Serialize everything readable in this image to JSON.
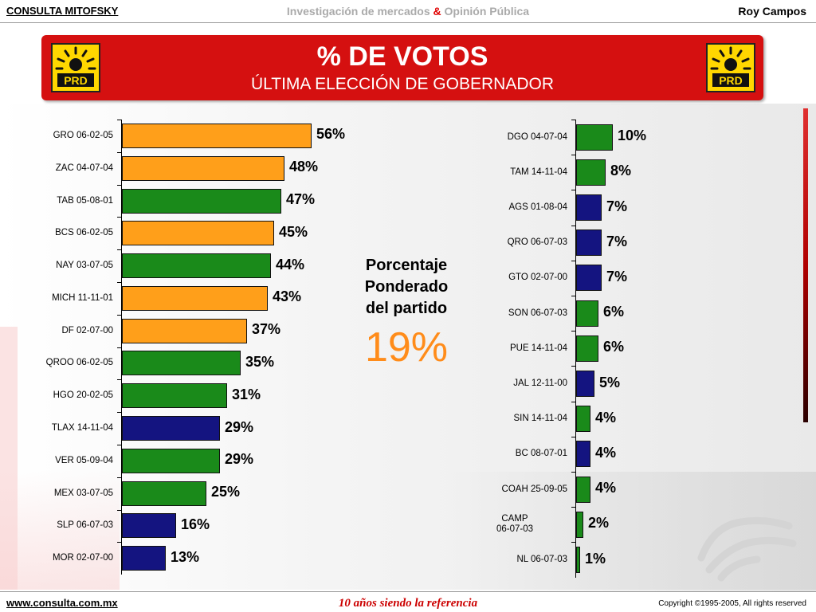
{
  "header": {
    "brand": "CONSULTA MITOFSKY",
    "tagline_left": "Investigación de mercados",
    "tagline_amp": "&",
    "tagline_right": "Opinión Pública",
    "author": "Roy Campos"
  },
  "banner": {
    "title": "% DE VOTOS",
    "subtitle": "ÚLTIMA ELECCIÓN DE GOBERNADOR",
    "logo_text": "PRD"
  },
  "colors": {
    "orange": "#ff9f1a",
    "green": "#1a8a1a",
    "blue": "#141480",
    "banner_red": "#d51010",
    "accent": "#ff8c1a"
  },
  "chart_data": [
    {
      "type": "bar",
      "orientation": "horizontal",
      "categories": [
        "GRO 06-02-05",
        "ZAC 04-07-04",
        "TAB 05-08-01",
        "BCS 06-02-05",
        "NAY 03-07-05",
        "MICH 11-11-01",
        "DF 02-07-00",
        "QROO 06-02-05",
        "HGO 20-02-05",
        "TLAX 14-11-04",
        "VER 05-09-04",
        "MEX 03-07-05",
        "SLP 06-07-03",
        "MOR 02-07-00"
      ],
      "values": [
        56,
        48,
        47,
        45,
        44,
        43,
        37,
        35,
        31,
        29,
        29,
        25,
        16,
        13
      ],
      "value_labels": [
        "56%",
        "48%",
        "47%",
        "45%",
        "44%",
        "43%",
        "37%",
        "35%",
        "31%",
        "29%",
        "29%",
        "25%",
        "16%",
        "13%"
      ],
      "bar_colors": [
        "orange",
        "orange",
        "green",
        "orange",
        "green",
        "orange",
        "orange",
        "green",
        "green",
        "blue",
        "green",
        "green",
        "blue",
        "blue"
      ],
      "xlim": [
        0,
        56
      ]
    },
    {
      "type": "bar",
      "orientation": "horizontal",
      "categories": [
        "DGO 04-07-04",
        "TAM 14-11-04",
        "AGS 01-08-04",
        "QRO 06-07-03",
        "GTO 02-07-00",
        "SON 06-07-03",
        "PUE 14-11-04",
        "JAL 12-11-00",
        "SIN 14-11-04",
        "BC 08-07-01",
        "COAH 25-09-05",
        "CAMP\n06-07-03",
        "NL 06-07-03"
      ],
      "values": [
        10,
        8,
        7,
        7,
        7,
        6,
        6,
        5,
        4,
        4,
        4,
        2,
        1
      ],
      "value_labels": [
        "10%",
        "8%",
        "7%",
        "7%",
        "7%",
        "6%",
        "6%",
        "5%",
        "4%",
        "4%",
        "4%",
        "2%",
        "1%"
      ],
      "bar_colors": [
        "green",
        "green",
        "blue",
        "blue",
        "blue",
        "green",
        "green",
        "blue",
        "green",
        "blue",
        "green",
        "green",
        "green"
      ],
      "xlim": [
        0,
        10
      ]
    }
  ],
  "center": {
    "label": "Porcentaje\nPonderado\ndel partido",
    "value": "19%"
  },
  "footer": {
    "url": "www.consulta.com.mx",
    "slogan": "10 años siendo la referencia",
    "copyright": "Copyright ©1995-2005, All rights reserved"
  }
}
